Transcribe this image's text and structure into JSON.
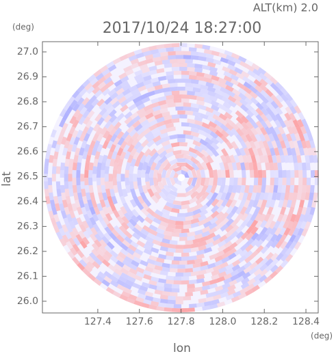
{
  "chart_data": {
    "type": "ppi",
    "title": "2017/10/24 18:27:00",
    "altitude_label": "ALT(km) 2.0",
    "xlabel": "lon",
    "ylabel": "lat",
    "xunit": "(deg)",
    "yunit": "(deg)",
    "xlim": [
      127.134,
      128.459
    ],
    "ylim": [
      25.953,
      27.041
    ],
    "xticks": [
      127.4,
      127.6,
      127.8,
      {
        "value": 128,
        "label": "128.0"
      },
      128.2,
      128.4
    ],
    "yticks": [
      {
        "value": 26,
        "label": "26.0"
      },
      26.1,
      26.2,
      26.3,
      26.4,
      26.5,
      26.6,
      26.7,
      26.8,
      26.9,
      {
        "value": 27,
        "label": "27.0"
      }
    ]
  }
}
